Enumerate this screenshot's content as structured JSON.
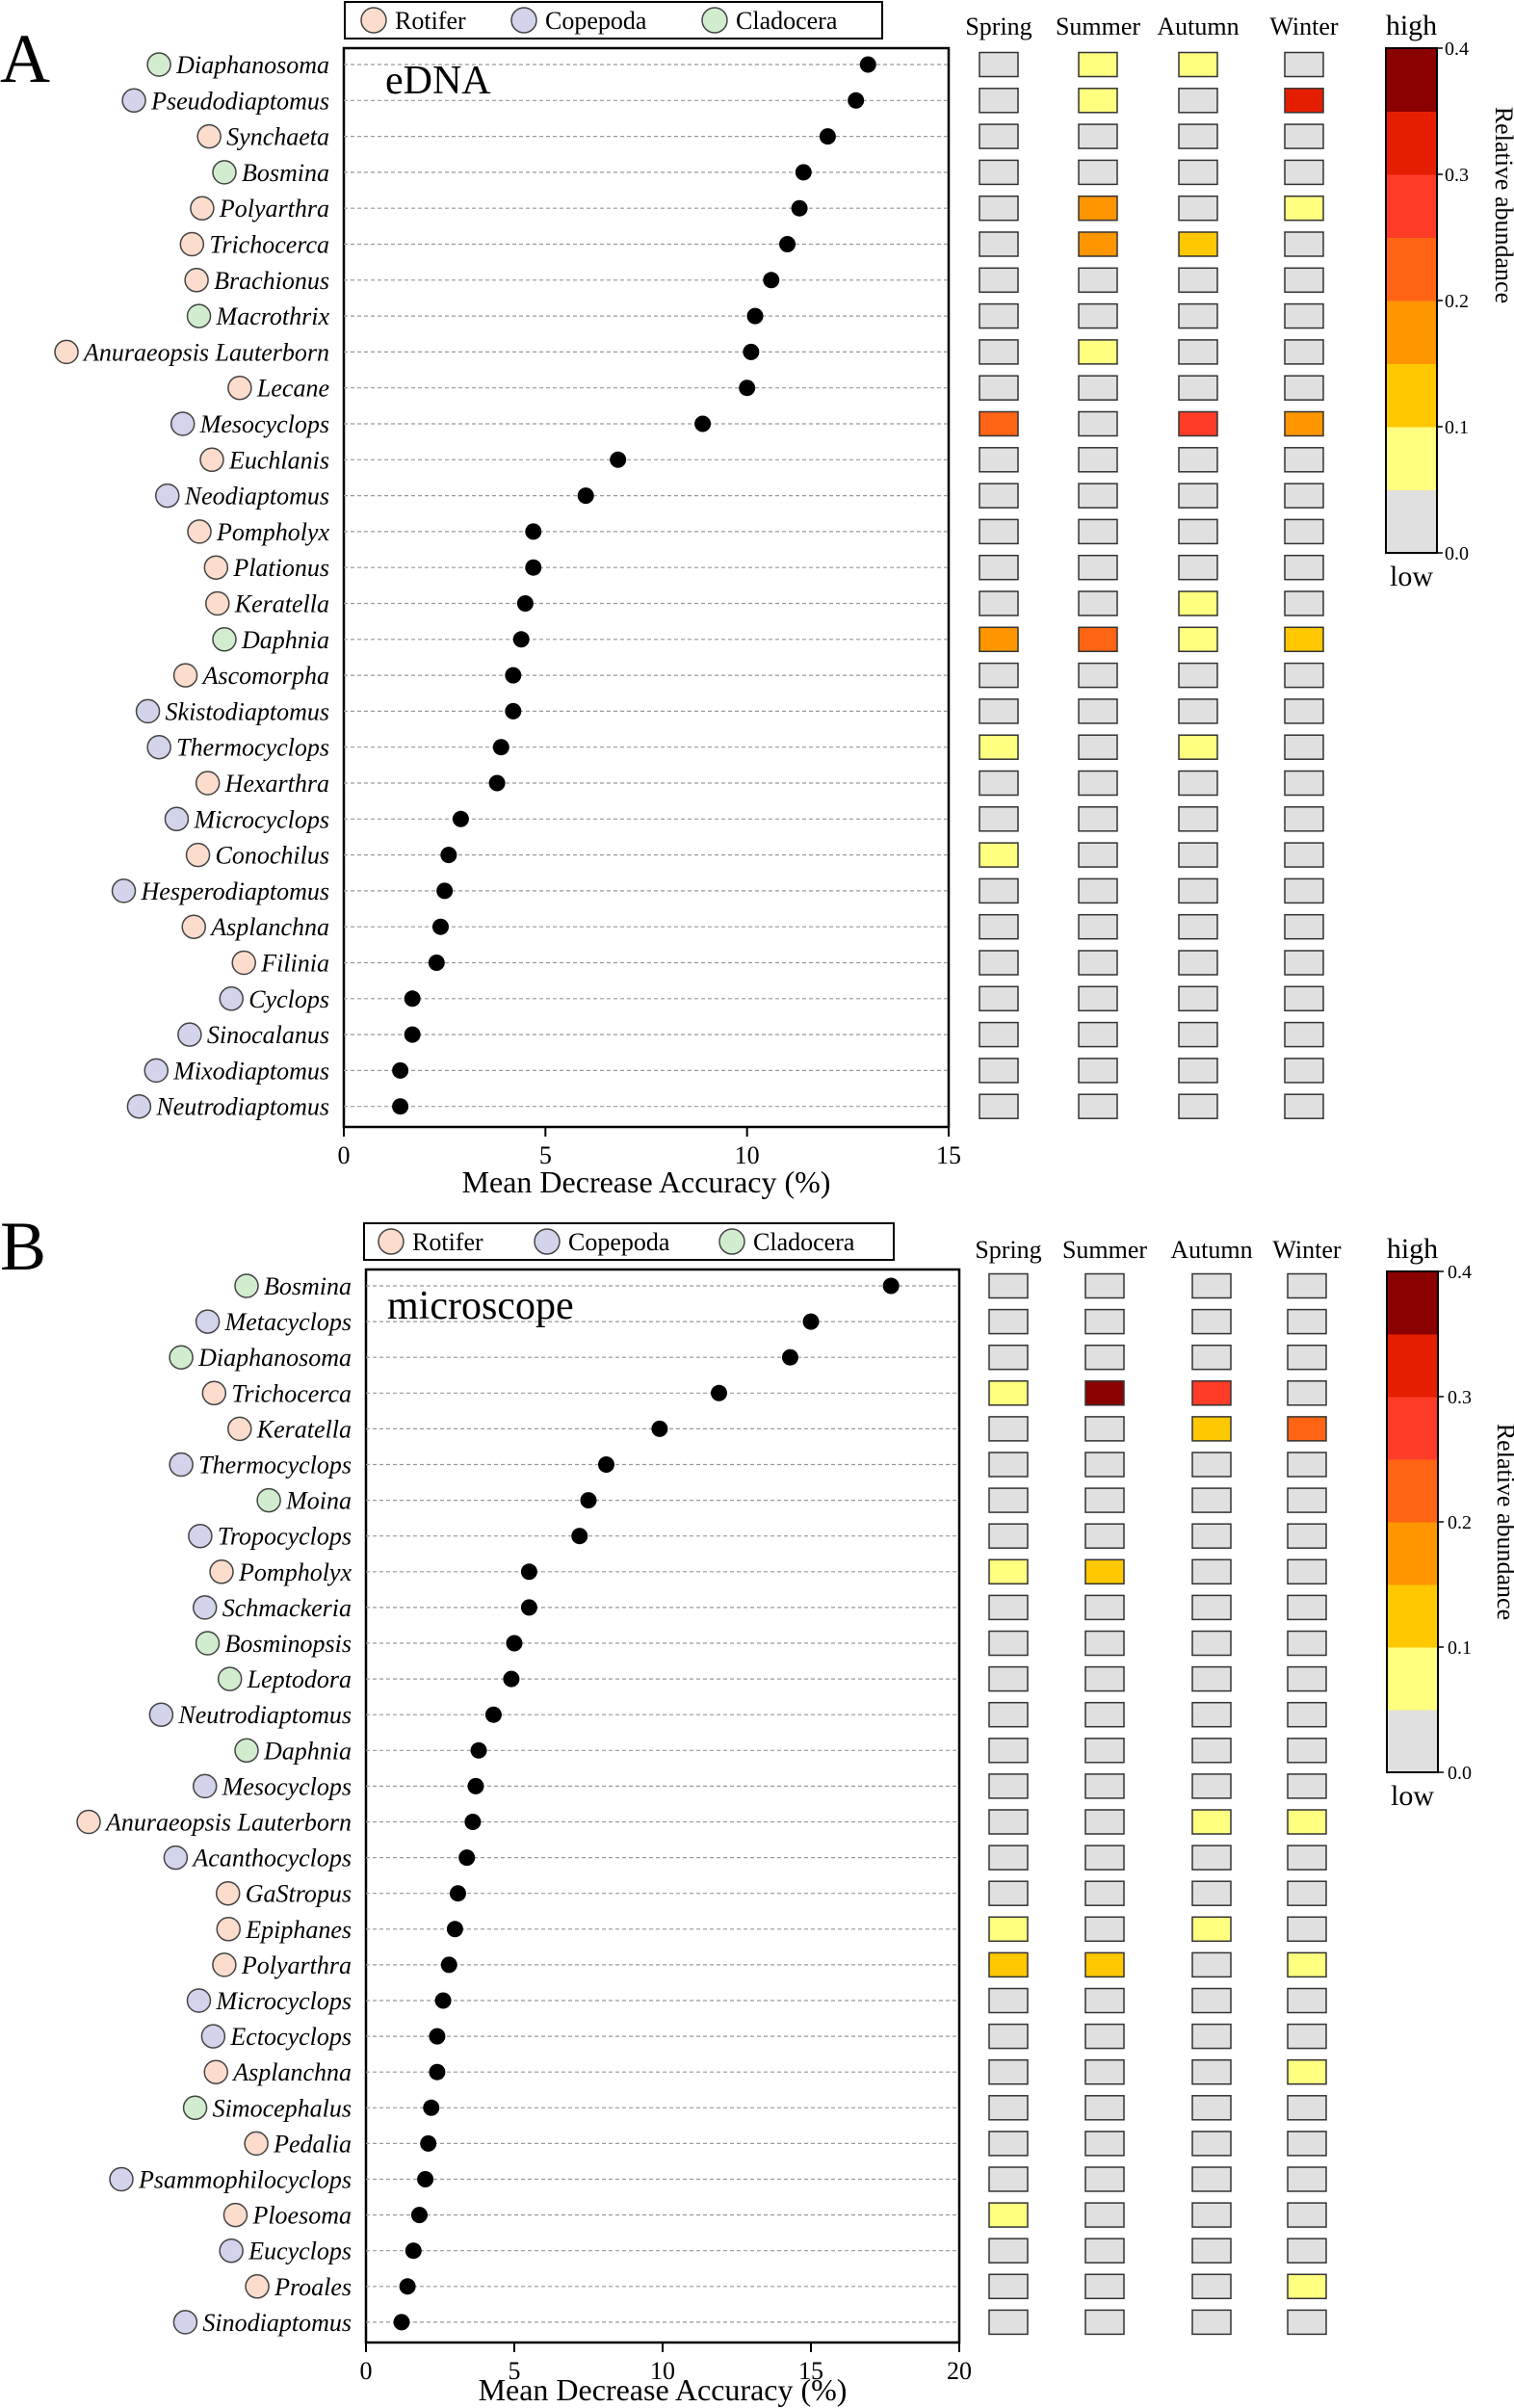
{
  "colors": {
    "groups": {
      "Rotifer": "#fbdccd",
      "Copepoda": "#d3d3ec",
      "Cladocera": "#d2ecd0"
    },
    "scale": [
      "#e0e0e0",
      "#ffff80",
      "#ffc800",
      "#ff9600",
      "#ff6414",
      "#ff3c28",
      "#e61e00",
      "#8b0000"
    ],
    "dot": "#000000"
  },
  "chart_data": [
    {
      "type": "scatter",
      "panel_label": "A",
      "title": "eDNA",
      "xlabel": "Mean Decrease Accuracy (%)",
      "xlim": [
        0,
        15
      ],
      "xticks": [
        0,
        5,
        10,
        15
      ],
      "legend": [
        "Rotifer",
        "Copepoda",
        "Cladocera"
      ],
      "seasons": [
        "Spring",
        "Summer",
        "Autumn",
        "Winter"
      ],
      "colorbar": {
        "title": "Relative abundance",
        "high_label": "high",
        "low_label": "low",
        "ticks": [
          "0.0",
          "0.1",
          "0.2",
          "0.3",
          "0.4"
        ],
        "range": [
          0,
          0.4
        ]
      },
      "species": [
        {
          "name": "Diaphanosoma",
          "group": "Cladocera",
          "value": 13.0,
          "abundance": [
            0,
            1,
            1,
            0
          ]
        },
        {
          "name": "Pseudodiaptomus",
          "group": "Copepoda",
          "value": 12.7,
          "abundance": [
            0,
            1,
            0,
            6
          ]
        },
        {
          "name": "Synchaeta",
          "group": "Rotifer",
          "value": 12.0,
          "abundance": [
            0,
            0,
            0,
            0
          ]
        },
        {
          "name": "Bosmina",
          "group": "Cladocera",
          "value": 11.4,
          "abundance": [
            0,
            0,
            0,
            0
          ]
        },
        {
          "name": "Polyarthra",
          "group": "Rotifer",
          "value": 11.3,
          "abundance": [
            0,
            3,
            0,
            1
          ]
        },
        {
          "name": "Trichocerca",
          "group": "Rotifer",
          "value": 11.0,
          "abundance": [
            0,
            3,
            2,
            0
          ]
        },
        {
          "name": "Brachionus",
          "group": "Rotifer",
          "value": 10.6,
          "abundance": [
            0,
            0,
            0,
            0
          ]
        },
        {
          "name": "Macrothrix",
          "group": "Cladocera",
          "value": 10.2,
          "abundance": [
            0,
            0,
            0,
            0
          ]
        },
        {
          "name": "Anuraeopsis Lauterborn",
          "group": "Rotifer",
          "value": 10.1,
          "abundance": [
            0,
            1,
            0,
            0
          ]
        },
        {
          "name": "Lecane",
          "group": "Rotifer",
          "value": 10.0,
          "abundance": [
            0,
            0,
            0,
            0
          ]
        },
        {
          "name": "Mesocyclops",
          "group": "Copepoda",
          "value": 8.9,
          "abundance": [
            4,
            0,
            5,
            3
          ]
        },
        {
          "name": "Euchlanis",
          "group": "Rotifer",
          "value": 6.8,
          "abundance": [
            0,
            0,
            0,
            0
          ]
        },
        {
          "name": "Neodiaptomus",
          "group": "Copepoda",
          "value": 6.0,
          "abundance": [
            0,
            0,
            0,
            0
          ]
        },
        {
          "name": "Pompholyx",
          "group": "Rotifer",
          "value": 4.7,
          "abundance": [
            0,
            0,
            0,
            0
          ]
        },
        {
          "name": "Plationus",
          "group": "Rotifer",
          "value": 4.7,
          "abundance": [
            0,
            0,
            0,
            0
          ]
        },
        {
          "name": "Keratella",
          "group": "Rotifer",
          "value": 4.5,
          "abundance": [
            0,
            0,
            1,
            0
          ]
        },
        {
          "name": "Daphnia",
          "group": "Cladocera",
          "value": 4.4,
          "abundance": [
            3,
            4,
            1,
            2
          ]
        },
        {
          "name": "Ascomorpha",
          "group": "Rotifer",
          "value": 4.2,
          "abundance": [
            0,
            0,
            0,
            0
          ]
        },
        {
          "name": "Skistodiaptomus",
          "group": "Copepoda",
          "value": 4.2,
          "abundance": [
            0,
            0,
            0,
            0
          ]
        },
        {
          "name": "Thermocyclops",
          "group": "Copepoda",
          "value": 3.9,
          "abundance": [
            1,
            0,
            1,
            0
          ]
        },
        {
          "name": "Hexarthra",
          "group": "Rotifer",
          "value": 3.8,
          "abundance": [
            0,
            0,
            0,
            0
          ]
        },
        {
          "name": "Microcyclops",
          "group": "Copepoda",
          "value": 2.9,
          "abundance": [
            0,
            0,
            0,
            0
          ]
        },
        {
          "name": "Conochilus",
          "group": "Rotifer",
          "value": 2.6,
          "abundance": [
            1,
            0,
            0,
            0
          ]
        },
        {
          "name": "Hesperodiaptomus",
          "group": "Copepoda",
          "value": 2.5,
          "abundance": [
            0,
            0,
            0,
            0
          ]
        },
        {
          "name": "Asplanchna",
          "group": "Rotifer",
          "value": 2.4,
          "abundance": [
            0,
            0,
            0,
            0
          ]
        },
        {
          "name": "Filinia",
          "group": "Rotifer",
          "value": 2.3,
          "abundance": [
            0,
            0,
            0,
            0
          ]
        },
        {
          "name": "Cyclops",
          "group": "Copepoda",
          "value": 1.7,
          "abundance": [
            0,
            0,
            0,
            0
          ]
        },
        {
          "name": "Sinocalanus",
          "group": "Copepoda",
          "value": 1.7,
          "abundance": [
            0,
            0,
            0,
            0
          ]
        },
        {
          "name": "Mixodiaptomus",
          "group": "Copepoda",
          "value": 1.4,
          "abundance": [
            0,
            0,
            0,
            0
          ]
        },
        {
          "name": "Neutrodiaptomus",
          "group": "Copepoda",
          "value": 1.4,
          "abundance": [
            0,
            0,
            0,
            0
          ]
        }
      ]
    },
    {
      "type": "scatter",
      "panel_label": "B",
      "title": "microscope",
      "xlabel": "Mean Decrease Accuracy (%)",
      "xlim": [
        0,
        20
      ],
      "xticks": [
        0,
        5,
        10,
        15,
        20
      ],
      "legend": [
        "Rotifer",
        "Copepoda",
        "Cladocera"
      ],
      "seasons": [
        "Spring",
        "Summer",
        "Autumn",
        "Winter"
      ],
      "colorbar": {
        "title": "Relative abundance",
        "high_label": "high",
        "low_label": "low",
        "ticks": [
          "0.0",
          "0.1",
          "0.2",
          "0.3",
          "0.4"
        ],
        "range": [
          0,
          0.4
        ]
      },
      "species": [
        {
          "name": "Bosmina",
          "group": "Cladocera",
          "value": 17.7,
          "abundance": [
            0,
            0,
            0,
            0
          ]
        },
        {
          "name": "Metacyclops",
          "group": "Copepoda",
          "value": 15.0,
          "abundance": [
            0,
            0,
            0,
            0
          ]
        },
        {
          "name": "Diaphanosoma",
          "group": "Cladocera",
          "value": 14.3,
          "abundance": [
            0,
            0,
            0,
            0
          ]
        },
        {
          "name": "Trichocerca",
          "group": "Rotifer",
          "value": 11.9,
          "abundance": [
            1,
            7,
            5,
            0
          ]
        },
        {
          "name": "Keratella",
          "group": "Rotifer",
          "value": 9.9,
          "abundance": [
            0,
            0,
            2,
            4
          ]
        },
        {
          "name": "Thermocyclops",
          "group": "Copepoda",
          "value": 8.1,
          "abundance": [
            0,
            0,
            0,
            0
          ]
        },
        {
          "name": "Moina",
          "group": "Cladocera",
          "value": 7.5,
          "abundance": [
            0,
            0,
            0,
            0
          ]
        },
        {
          "name": "Tropocyclops",
          "group": "Copepoda",
          "value": 7.2,
          "abundance": [
            0,
            0,
            0,
            0
          ]
        },
        {
          "name": "Pompholyx",
          "group": "Rotifer",
          "value": 5.5,
          "abundance": [
            1,
            2,
            0,
            0
          ]
        },
        {
          "name": "Schmackeria",
          "group": "Copepoda",
          "value": 5.5,
          "abundance": [
            0,
            0,
            0,
            0
          ]
        },
        {
          "name": "Bosminopsis",
          "group": "Cladocera",
          "value": 5.0,
          "abundance": [
            0,
            0,
            0,
            0
          ]
        },
        {
          "name": "Leptodora",
          "group": "Cladocera",
          "value": 4.9,
          "abundance": [
            0,
            0,
            0,
            0
          ]
        },
        {
          "name": "Neutrodiaptomus",
          "group": "Copepoda",
          "value": 4.3,
          "abundance": [
            0,
            0,
            0,
            0
          ]
        },
        {
          "name": "Daphnia",
          "group": "Cladocera",
          "value": 3.8,
          "abundance": [
            0,
            0,
            0,
            0
          ]
        },
        {
          "name": "Mesocyclops",
          "group": "Copepoda",
          "value": 3.7,
          "abundance": [
            0,
            0,
            0,
            0
          ]
        },
        {
          "name": "Anuraeopsis Lauterborn",
          "group": "Rotifer",
          "value": 3.6,
          "abundance": [
            0,
            0,
            1,
            1
          ]
        },
        {
          "name": "Acanthocyclops",
          "group": "Copepoda",
          "value": 3.4,
          "abundance": [
            0,
            0,
            0,
            0
          ]
        },
        {
          "name": "GaStropus",
          "group": "Rotifer",
          "value": 3.1,
          "abundance": [
            0,
            0,
            0,
            0
          ]
        },
        {
          "name": "Epiphanes",
          "group": "Rotifer",
          "value": 3.0,
          "abundance": [
            1,
            0,
            1,
            0
          ]
        },
        {
          "name": "Polyarthra",
          "group": "Rotifer",
          "value": 2.8,
          "abundance": [
            2,
            2,
            0,
            1
          ]
        },
        {
          "name": "Microcyclops",
          "group": "Copepoda",
          "value": 2.6,
          "abundance": [
            0,
            0,
            0,
            0
          ]
        },
        {
          "name": "Ectocyclops",
          "group": "Copepoda",
          "value": 2.4,
          "abundance": [
            0,
            0,
            0,
            0
          ]
        },
        {
          "name": "Asplanchna",
          "group": "Rotifer",
          "value": 2.4,
          "abundance": [
            0,
            0,
            0,
            1
          ]
        },
        {
          "name": "Simocephalus",
          "group": "Cladocera",
          "value": 2.2,
          "abundance": [
            0,
            0,
            0,
            0
          ]
        },
        {
          "name": "Pedalia",
          "group": "Rotifer",
          "value": 2.1,
          "abundance": [
            0,
            0,
            0,
            0
          ]
        },
        {
          "name": "Psammophilocyclops",
          "group": "Copepoda",
          "value": 2.0,
          "abundance": [
            0,
            0,
            0,
            0
          ]
        },
        {
          "name": "Ploesoma",
          "group": "Rotifer",
          "value": 1.8,
          "abundance": [
            1,
            0,
            0,
            0
          ]
        },
        {
          "name": "Eucyclops",
          "group": "Copepoda",
          "value": 1.6,
          "abundance": [
            0,
            0,
            0,
            0
          ]
        },
        {
          "name": "Proales",
          "group": "Rotifer",
          "value": 1.4,
          "abundance": [
            0,
            0,
            0,
            1
          ]
        },
        {
          "name": "Sinodiaptomus",
          "group": "Copepoda",
          "value": 1.2,
          "abundance": [
            0,
            0,
            0,
            0
          ]
        }
      ]
    }
  ]
}
